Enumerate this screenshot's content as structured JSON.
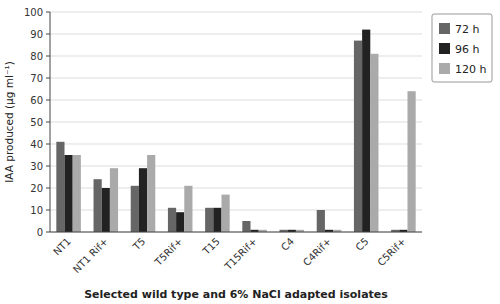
{
  "chart_data": {
    "type": "bar",
    "xlabel": "Selected wild type and 6% NaCl adapted isolates",
    "ylabel": "IAA produced (µg ml⁻¹)",
    "categories": [
      "NT1",
      "NT1 Rif+",
      "T5",
      "T5Rif+",
      "T15",
      "T15Rif+",
      "C4",
      "C4Rif+",
      "C5",
      "C5Rif+"
    ],
    "series": [
      {
        "name": "72 h",
        "color": "#666666",
        "values": [
          41,
          24,
          21,
          11,
          11,
          5,
          1,
          10,
          87,
          1
        ]
      },
      {
        "name": "96 h",
        "color": "#222222",
        "values": [
          35,
          20,
          29,
          9,
          11,
          1,
          1,
          1,
          92,
          1
        ]
      },
      {
        "name": "120 h",
        "color": "#aaaaaa",
        "values": [
          35,
          29,
          35,
          21,
          17,
          1,
          1,
          1,
          81,
          64
        ]
      }
    ],
    "ylim": [
      0,
      100
    ],
    "yticks": [
      0,
      10,
      20,
      30,
      40,
      50,
      60,
      70,
      80,
      90,
      100
    ],
    "grid": true,
    "legend": "right"
  }
}
